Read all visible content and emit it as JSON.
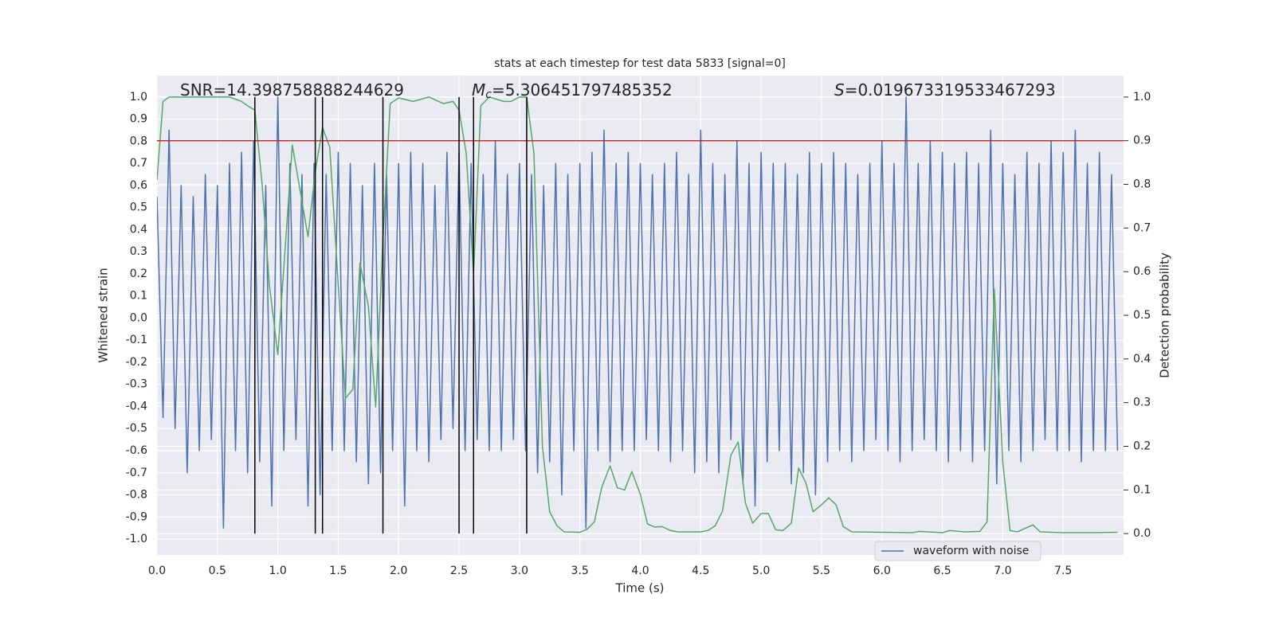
{
  "chart_data": {
    "type": "line",
    "title": "stats at each timestep for test data 5833 [signal=0]",
    "xlabel": "Time (s)",
    "ylabel": "Whitened strain",
    "y2label": "Detection probability",
    "xlim": [
      0,
      8.0
    ],
    "ylim": [
      -1.072,
      1.097
    ],
    "y2lim": [
      -0.049,
      1.049
    ],
    "grid": true,
    "legend": "lower right",
    "xticks": [
      {
        "value": 0,
        "label": "0.0"
      },
      0.5,
      {
        "value": 1,
        "label": "1.0"
      },
      1.5,
      {
        "value": 2,
        "label": "2.0"
      },
      2.5,
      {
        "value": 3,
        "label": "3.0"
      },
      3.5,
      {
        "value": 4,
        "label": "4.0"
      },
      4.5,
      {
        "value": 5,
        "label": "5.0"
      },
      5.5,
      {
        "value": 6,
        "label": "6.0"
      },
      6.5,
      {
        "value": 7,
        "label": "7.0"
      },
      7.5
    ],
    "yticks": [
      {
        "value": 1,
        "label": "1.0"
      },
      0.9,
      0.8,
      0.7,
      0.6,
      0.5,
      0.4,
      0.3,
      0.2,
      0.1,
      {
        "value": 0,
        "label": "0.0"
      },
      -0.1,
      -0.2,
      -0.3,
      -0.4,
      -0.5,
      -0.6,
      -0.7,
      -0.8,
      -0.9,
      {
        "value": -1,
        "label": "-1.0"
      }
    ],
    "y2ticks": [
      {
        "value": 0,
        "label": "0.0"
      },
      0.1,
      0.2,
      0.3,
      0.4,
      0.5,
      0.6,
      0.7,
      0.8,
      0.9,
      {
        "value": 1,
        "label": "1.0"
      }
    ],
    "annotations": [
      {
        "text": "SNR=14.398758888244629"
      },
      {
        "symbol": "M",
        "subscript": "c",
        "text": "=5.306451797485352"
      },
      {
        "symbol": "S",
        "text": "=0.019673319533467293"
      }
    ],
    "vlines": {
      "x": [
        0.81,
        1.31,
        1.37,
        1.87,
        2.5,
        2.62,
        3.06
      ],
      "ymin": -0.975,
      "ymax": 1.0,
      "color": "#000000"
    },
    "hline": {
      "y2": 0.9,
      "color": "#b8302f"
    },
    "series": [
      {
        "name": "waveform with noise",
        "color": "#4c72b0",
        "x": [
          0,
          0.05,
          0.1,
          0.15,
          0.2,
          0.25,
          0.3,
          0.35,
          0.4,
          0.45,
          0.5,
          0.55,
          0.6,
          0.65,
          0.7,
          0.75,
          0.8,
          0.85,
          0.9,
          0.95,
          1,
          1.05,
          1.1,
          1.15,
          1.2,
          1.25,
          1.3,
          1.35,
          1.4,
          1.45,
          1.5,
          1.55,
          1.6,
          1.65,
          1.7,
          1.75,
          1.8,
          1.85,
          1.9,
          1.95,
          2,
          2.05,
          2.1,
          2.15,
          2.2,
          2.25,
          2.3,
          2.35,
          2.4,
          2.45,
          2.5,
          2.55,
          2.6,
          2.65,
          2.7,
          2.75,
          2.8,
          2.85,
          2.9,
          2.95,
          3,
          3.05,
          3.1,
          3.15,
          3.2,
          3.25,
          3.3,
          3.35,
          3.4,
          3.45,
          3.5,
          3.55,
          3.6,
          3.65,
          3.7,
          3.75,
          3.8,
          3.85,
          3.9,
          3.95,
          4,
          4.05,
          4.1,
          4.15,
          4.2,
          4.25,
          4.3,
          4.35,
          4.4,
          4.45,
          4.5,
          4.55,
          4.6,
          4.65,
          4.7,
          4.75,
          4.8,
          4.85,
          4.9,
          4.95,
          5,
          5.05,
          5.1,
          5.15,
          5.2,
          5.25,
          5.3,
          5.35,
          5.4,
          5.45,
          5.5,
          5.55,
          5.6,
          5.65,
          5.7,
          5.75,
          5.8,
          5.85,
          5.9,
          5.95,
          6,
          6.05,
          6.1,
          6.15,
          6.2,
          6.25,
          6.3,
          6.35,
          6.4,
          6.45,
          6.5,
          6.55,
          6.6,
          6.65,
          6.7,
          6.75,
          6.8,
          6.85,
          6.9,
          6.95,
          7,
          7.05,
          7.1,
          7.15,
          7.2,
          7.25,
          7.3,
          7.35,
          7.4,
          7.45,
          7.5,
          7.55,
          7.6,
          7.65,
          7.7,
          7.75,
          7.8,
          7.85,
          7.9,
          7.95
        ],
        "values": [
          0.55,
          -0.45,
          0.85,
          -0.5,
          0.6,
          -0.7,
          0.55,
          -0.6,
          0.65,
          -0.55,
          0.6,
          -0.95,
          0.7,
          -0.6,
          0.75,
          -0.7,
          0.8,
          -0.65,
          0.6,
          -0.85,
          1.0,
          -0.6,
          0.7,
          -0.55,
          0.65,
          -0.85,
          0.7,
          -0.8,
          0.65,
          -0.6,
          0.75,
          -0.6,
          0.7,
          -0.65,
          0.6,
          -0.75,
          0.7,
          -0.7,
          0.65,
          -0.6,
          0.7,
          -0.85,
          0.75,
          -0.6,
          0.7,
          -0.65,
          0.6,
          -0.55,
          0.75,
          -0.5,
          0.75,
          -0.6,
          0.7,
          -0.55,
          0.65,
          -0.6,
          0.8,
          -0.6,
          0.65,
          -0.55,
          0.7,
          -0.6,
          0.65,
          -0.7,
          0.6,
          -0.65,
          0.7,
          -0.8,
          0.65,
          -0.6,
          0.7,
          -0.95,
          0.75,
          -0.6,
          0.85,
          -0.65,
          0.7,
          -0.6,
          0.75,
          -0.6,
          0.7,
          -0.55,
          0.65,
          -0.6,
          0.7,
          -0.65,
          0.75,
          -0.6,
          0.65,
          -0.7,
          0.85,
          -0.65,
          0.7,
          -0.7,
          0.65,
          -0.55,
          0.8,
          -0.75,
          0.7,
          -0.85,
          0.75,
          -0.65,
          0.7,
          -0.6,
          0.7,
          -0.75,
          0.65,
          -0.7,
          0.75,
          -0.8,
          0.7,
          -0.65,
          0.75,
          -0.6,
          0.7,
          -0.65,
          0.65,
          -0.6,
          0.7,
          -0.55,
          0.8,
          -0.6,
          0.7,
          -0.65,
          1.0,
          -0.6,
          0.7,
          -0.55,
          0.8,
          -0.6,
          0.75,
          -0.65,
          0.7,
          -0.6,
          0.75,
          -0.65,
          0.7,
          -0.6,
          0.85,
          -0.75,
          0.7,
          -0.6,
          0.65,
          -0.65,
          0.75,
          -0.6,
          0.7,
          -0.55,
          0.8,
          -0.6,
          0.75,
          -0.6,
          0.85,
          -0.65,
          0.7,
          -0.6,
          0.75,
          -0.6,
          0.65,
          -0.6
        ]
      },
      {
        "color": "#55a868",
        "axis": "y2",
        "x": [
          0,
          0.05,
          0.1,
          0.6,
          0.65,
          0.7,
          0.75,
          0.81,
          0.87,
          0.93,
          1.0,
          1.12,
          1.25,
          1.31,
          1.37,
          1.43,
          1.5,
          1.56,
          1.62,
          1.68,
          1.75,
          1.81,
          1.87,
          1.93,
          2.0,
          2.12,
          2.25,
          2.37,
          2.45,
          2.5,
          2.56,
          2.62,
          2.68,
          2.75,
          2.87,
          2.93,
          3.0,
          3.06,
          3.12,
          3.19,
          3.25,
          3.31,
          3.37,
          3.5,
          3.56,
          3.62,
          3.68,
          3.75,
          3.81,
          3.87,
          3.93,
          4.0,
          4.06,
          4.12,
          4.18,
          4.25,
          4.31,
          4.5,
          4.56,
          4.62,
          4.68,
          4.75,
          4.81,
          4.87,
          4.93,
          5.0,
          5.06,
          5.12,
          5.18,
          5.25,
          5.31,
          5.37,
          5.43,
          5.5,
          5.56,
          5.62,
          5.68,
          5.75,
          6.25,
          6.31,
          6.5,
          6.56,
          6.68,
          6.81,
          6.87,
          6.93,
          7.0,
          7.06,
          7.12,
          7.25,
          7.31,
          7.5,
          7.75,
          7.95
        ],
        "values": [
          0.81,
          0.99,
          1.0,
          1.0,
          0.995,
          0.99,
          0.98,
          0.97,
          0.8,
          0.57,
          0.41,
          0.89,
          0.68,
          0.83,
          0.93,
          0.885,
          0.57,
          0.31,
          0.33,
          0.62,
          0.52,
          0.29,
          0.675,
          0.985,
          0.998,
          0.99,
          1.0,
          0.985,
          0.99,
          0.97,
          0.87,
          0.593,
          0.98,
          1.0,
          0.99,
          0.99,
          1.0,
          1.0,
          0.87,
          0.2,
          0.05,
          0.018,
          0.004,
          0.003,
          0.01,
          0.027,
          0.105,
          0.155,
          0.105,
          0.1,
          0.142,
          0.09,
          0.022,
          0.015,
          0.016,
          0.007,
          0.004,
          0.004,
          0.007,
          0.018,
          0.051,
          0.18,
          0.21,
          0.07,
          0.024,
          0.046,
          0.046,
          0.009,
          0.007,
          0.024,
          0.15,
          0.117,
          0.05,
          0.066,
          0.082,
          0.066,
          0.016,
          0.004,
          0.002,
          0.005,
          0.002,
          0.007,
          0.004,
          0.005,
          0.027,
          0.56,
          0.164,
          0.007,
          0.004,
          0.02,
          0.004,
          0.002,
          0.002,
          0.003
        ]
      }
    ]
  }
}
